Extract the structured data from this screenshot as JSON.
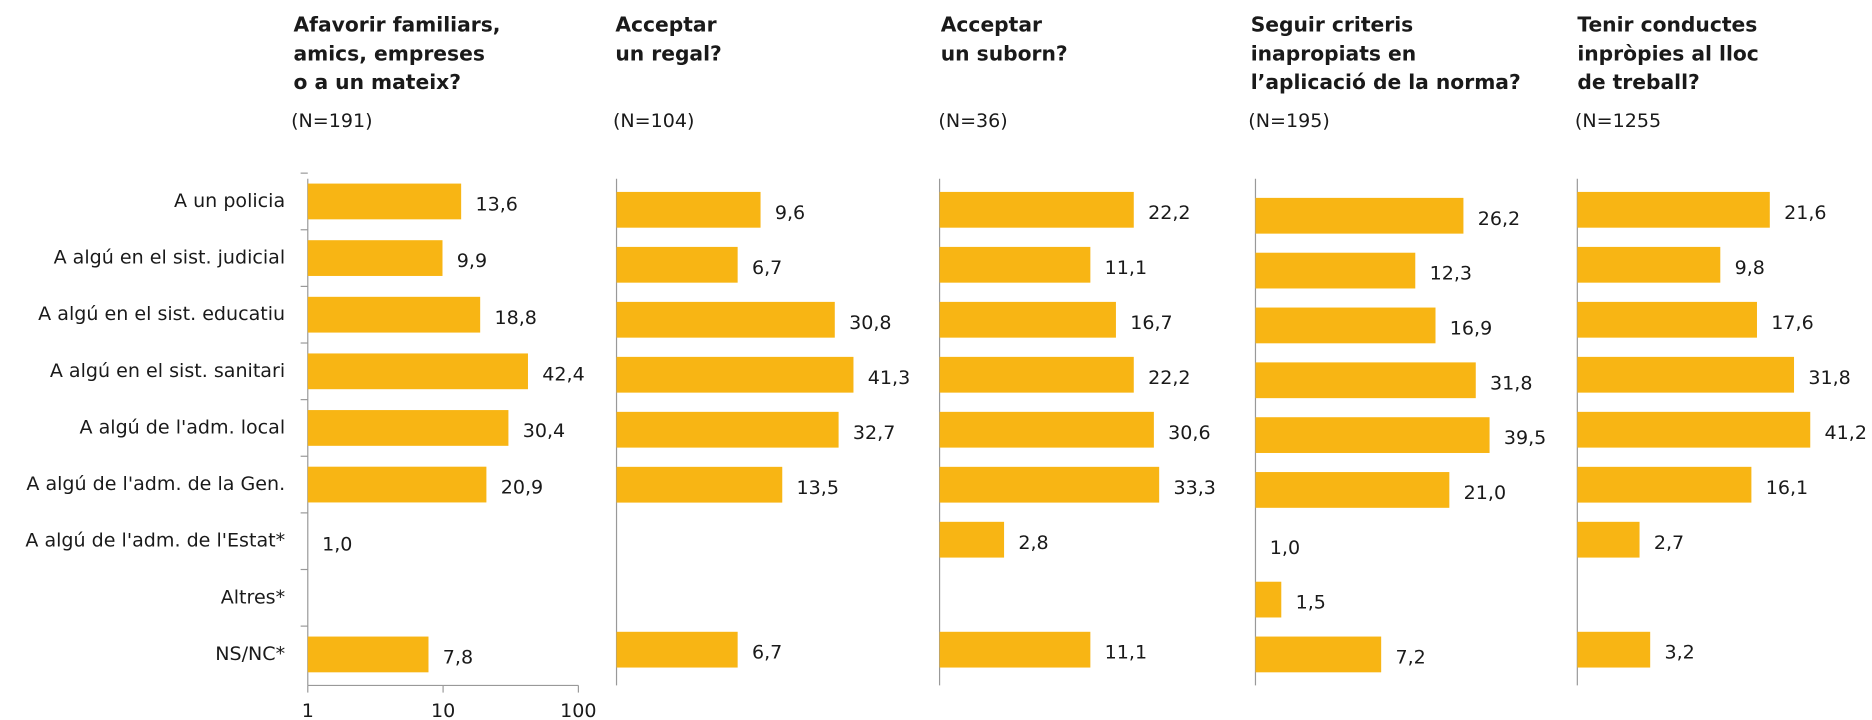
{
  "chart_data": [
    {
      "type": "bar",
      "orientation": "horizontal",
      "title": [
        "Afavorir familiars,",
        "amics, empreses",
        "o a un mateix?"
      ],
      "subtitle": "(N=191)",
      "categories": [
        "A un policia",
        "A algú en el sist. judicial",
        "A algú en el sist. educatiu",
        "A algú en el sist. sanitari",
        "A algú de l'adm. local",
        "A algú de l'adm. de la Gen.",
        "A algú de l'adm. de l'Estat*",
        "Altres*",
        "NS/NC*"
      ],
      "values": [
        13.6,
        9.9,
        18.8,
        42.4,
        30.4,
        20.9,
        1.0,
        null,
        7.8
      ],
      "value_labels": [
        "13,6",
        "9,9",
        "18,8",
        "42,4",
        "30,4",
        "20,9",
        "1,0",
        null,
        "7,8"
      ],
      "color": "#f8b514",
      "xscale": "log",
      "xlim": [
        1,
        100
      ],
      "xticks": [
        1,
        10,
        100
      ]
    },
    {
      "type": "bar",
      "orientation": "horizontal",
      "title": [
        "Acceptar",
        "un regal?"
      ],
      "subtitle": "(N=104)",
      "values": [
        9.6,
        6.7,
        30.8,
        41.3,
        32.7,
        13.5,
        null,
        null,
        6.7
      ],
      "value_labels": [
        "9,6",
        "6,7",
        "30,8",
        "41,3",
        "32,7",
        "13,5",
        null,
        null,
        "6,7"
      ],
      "color": "#f8b514",
      "xscale": "log",
      "xlim": [
        1,
        100
      ]
    },
    {
      "type": "bar",
      "orientation": "horizontal",
      "title": [
        "Acceptar",
        "un suborn?"
      ],
      "subtitle": "(N=36)",
      "values": [
        22.2,
        11.1,
        16.7,
        22.2,
        30.6,
        33.3,
        2.8,
        null,
        11.1
      ],
      "value_labels": [
        "22,2",
        "11,1",
        "16,7",
        "22,2",
        "30,6",
        "33,3",
        "2,8",
        null,
        "11,1"
      ],
      "color": "#f8b514",
      "xscale": "log",
      "xlim": [
        1,
        100
      ]
    },
    {
      "type": "bar",
      "orientation": "horizontal",
      "title": [
        "Seguir criteris",
        "inapropiats en",
        "l’aplicació de la norma?"
      ],
      "subtitle": "(N=195)",
      "values": [
        26.2,
        12.3,
        16.9,
        31.8,
        39.5,
        21.0,
        1.0,
        1.5,
        7.2
      ],
      "value_labels": [
        "26,2",
        "12,3",
        "16,9",
        "31,8",
        "39,5",
        "21,0",
        "1,0",
        "1,5",
        "7,2"
      ],
      "color": "#f8b514",
      "xscale": "log",
      "xlim": [
        1,
        100
      ]
    },
    {
      "type": "bar",
      "orientation": "horizontal",
      "title": [
        "Tenir conductes",
        "inpròpies al lloc",
        "de treball?"
      ],
      "subtitle": "(N=1255",
      "values": [
        21.6,
        9.8,
        17.6,
        31.8,
        41.2,
        16.1,
        2.7,
        null,
        3.2
      ],
      "value_labels": [
        "21,6",
        "9,8",
        "17,6",
        "31,8",
        "41,2",
        "16,1",
        "2,7",
        null,
        "3,2"
      ],
      "color": "#f8b514",
      "xscale": "log",
      "xlim": [
        1,
        100
      ]
    }
  ]
}
